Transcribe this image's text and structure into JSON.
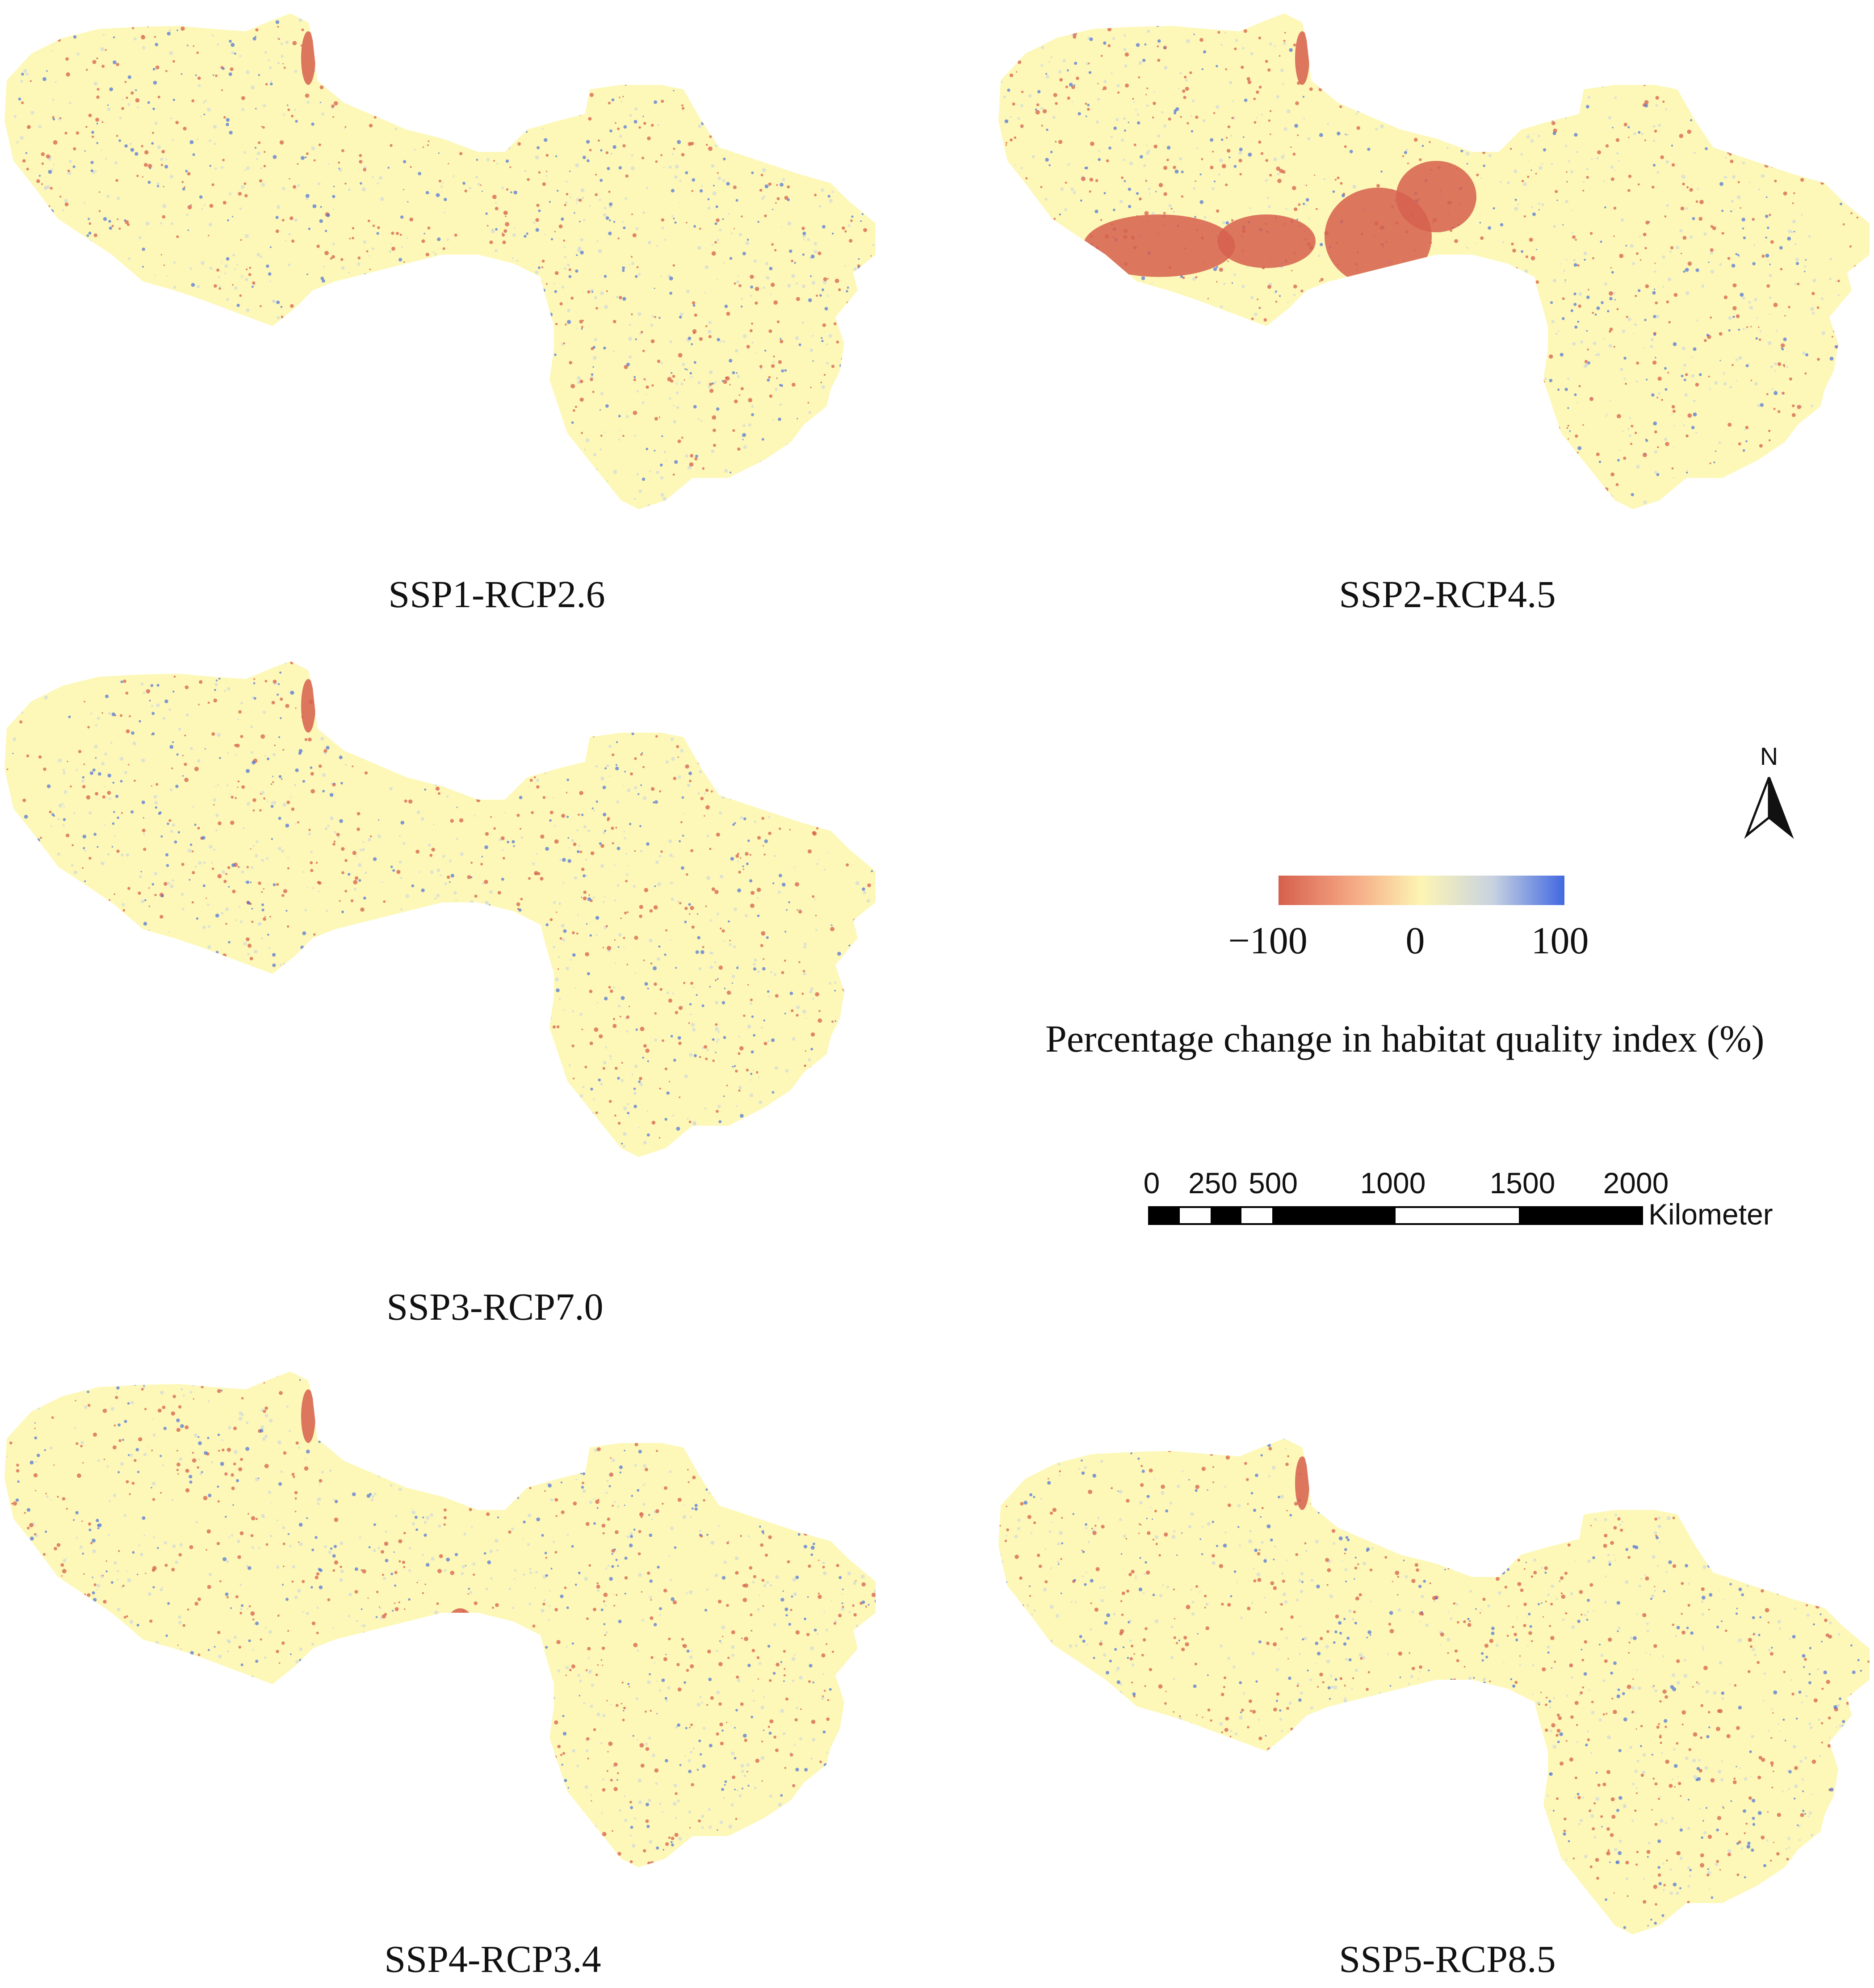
{
  "panels": [
    {
      "label": "SSP1-RCP2.6",
      "variant": "ssp1"
    },
    {
      "label": "SSP2-RCP4.5",
      "variant": "ssp2"
    },
    {
      "label": "SSP3-RCP7.0",
      "variant": "ssp3"
    },
    {
      "label": "SSP4-RCP3.4",
      "variant": "ssp4"
    },
    {
      "label": "SSP5-RCP8.5",
      "variant": "ssp5"
    }
  ],
  "legend": {
    "title": "Percentage change in habitat quality index (%)",
    "min_label": "−100",
    "mid_label": "0",
    "max_label": "100",
    "colors": [
      "#d6604d",
      "#f4a582",
      "#fdf5b4",
      "#c8d2e0",
      "#4169e1"
    ]
  },
  "north_arrow": {
    "letter": "N",
    "icon": "north-arrow-icon"
  },
  "scale_bar": {
    "ticks": [
      "0",
      "250",
      "500",
      "1000",
      "1500",
      "2000"
    ],
    "unit": "Kilometer"
  },
  "map_colors": {
    "land": "#fdf8b8",
    "decrease": "#d6604d",
    "increase": "#4a6fd8",
    "mild": "#c9d3df"
  }
}
